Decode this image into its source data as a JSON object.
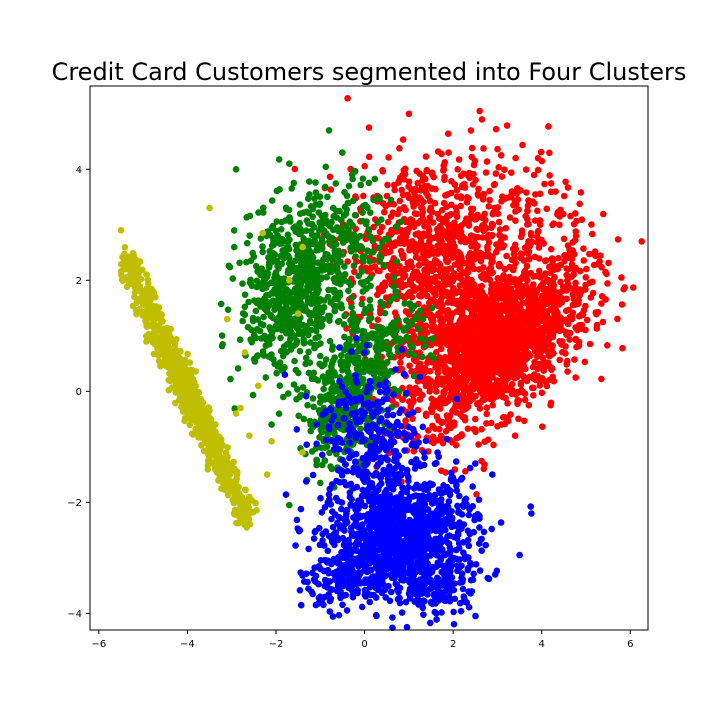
{
  "chart_data": {
    "type": "scatter",
    "title": "Credit Card Customers segmented into Four Clusters",
    "xlabel": "",
    "ylabel": "",
    "xlim": [
      -6.2,
      6.4
    ],
    "ylim": [
      -4.3,
      5.5
    ],
    "x_ticks": [
      -6,
      -4,
      -2,
      0,
      2,
      4,
      6
    ],
    "y_ticks": [
      -4,
      -2,
      0,
      2,
      4
    ],
    "grid": false,
    "series": [
      {
        "color": "#ff0000",
        "clusters": [
          {
            "cx": 3.1,
            "cy": 0.9,
            "sx": 1.0,
            "sy": 0.75,
            "rho": 0.55,
            "n": 1500
          },
          {
            "cx": 1.3,
            "cy": 2.6,
            "sx": 0.85,
            "sy": 0.8,
            "rho": 0.1,
            "n": 650
          },
          {
            "cx": 2.2,
            "cy": 1.1,
            "sx": 0.8,
            "sy": 0.85,
            "rho": 0.2,
            "n": 550
          },
          {
            "cx": 3.5,
            "cy": 3.2,
            "sx": 0.8,
            "sy": 0.6,
            "rho": -0.1,
            "n": 150
          }
        ],
        "extras": [
          [
            1.0,
            5.0
          ],
          [
            2.6,
            5.05
          ],
          [
            0.1,
            4.75
          ],
          [
            2.4,
            4.7
          ],
          [
            3.7,
            2.7
          ],
          [
            4.4,
            3.0
          ],
          [
            5.8,
            2.05
          ],
          [
            4.2,
            -0.25
          ],
          [
            3.4,
            -0.8
          ],
          [
            1.5,
            -0.9
          ],
          [
            2.5,
            -0.5
          ]
        ]
      },
      {
        "color": "#008000",
        "clusters": [
          {
            "cx": -1.7,
            "cy": 1.7,
            "sx": 0.55,
            "sy": 0.75,
            "rho": 0.0,
            "n": 600
          },
          {
            "cx": -0.6,
            "cy": 2.6,
            "sx": 0.55,
            "sy": 0.6,
            "rho": 0.1,
            "n": 250
          },
          {
            "cx": -0.4,
            "cy": -0.2,
            "sx": 0.45,
            "sy": 0.55,
            "rho": 0.3,
            "n": 380
          },
          {
            "cx": 0.3,
            "cy": 0.8,
            "sx": 0.6,
            "sy": 0.4,
            "rho": 0.3,
            "n": 150
          }
        ],
        "extras": [
          [
            -0.8,
            4.7
          ],
          [
            -2.9,
            4.0
          ],
          [
            -0.5,
            4.3
          ],
          [
            -1.7,
            4.1
          ],
          [
            -1.7,
            -2.05
          ],
          [
            -1.3,
            -1.6
          ],
          [
            -2.1,
            -0.6
          ],
          [
            0.7,
            1.8
          ]
        ]
      },
      {
        "color": "#0000ff",
        "clusters": [
          {
            "cx": 0.9,
            "cy": -2.6,
            "sx": 0.8,
            "sy": 0.5,
            "rho": 0.2,
            "n": 1000
          },
          {
            "cx": 0.1,
            "cy": -1.1,
            "sx": 0.6,
            "sy": 0.8,
            "rho": 0.0,
            "n": 380
          },
          {
            "cx": -0.4,
            "cy": -3.3,
            "sx": 0.45,
            "sy": 0.3,
            "rho": 0.2,
            "n": 160
          },
          {
            "cx": 1.6,
            "cy": -3.5,
            "sx": 0.5,
            "sy": 0.3,
            "rho": 0.0,
            "n": 160
          }
        ],
        "extras": [
          [
            3.5,
            -2.95
          ],
          [
            2.95,
            -3.3
          ],
          [
            2.5,
            -1.3
          ],
          [
            -1.1,
            -3.85
          ],
          [
            1.3,
            -3.85
          ],
          [
            -1.8,
            0.3
          ]
        ]
      },
      {
        "color": "#bfbf00",
        "line": {
          "x_start": -5.3,
          "y_start": 2.2,
          "x_end": -2.7,
          "y_end": -2.2,
          "spread": 0.22,
          "n": 900
        },
        "extras": [
          [
            -5.5,
            2.9
          ],
          [
            -3.5,
            3.3
          ],
          [
            -2.3,
            2.85
          ],
          [
            -2.7,
            0.7
          ],
          [
            -3.1,
            1.3
          ],
          [
            -2.9,
            -0.4
          ],
          [
            -2.6,
            -0.8
          ],
          [
            -2.4,
            0.1
          ],
          [
            -2.2,
            -1.5
          ],
          [
            -2.6,
            -1.9
          ],
          [
            -2.1,
            -0.9
          ],
          [
            -1.7,
            2.0
          ],
          [
            -1.5,
            1.4
          ],
          [
            -1.4,
            -1.1
          ],
          [
            -2.8,
            -0.3
          ],
          [
            -1.4,
            2.6
          ]
        ]
      }
    ]
  }
}
